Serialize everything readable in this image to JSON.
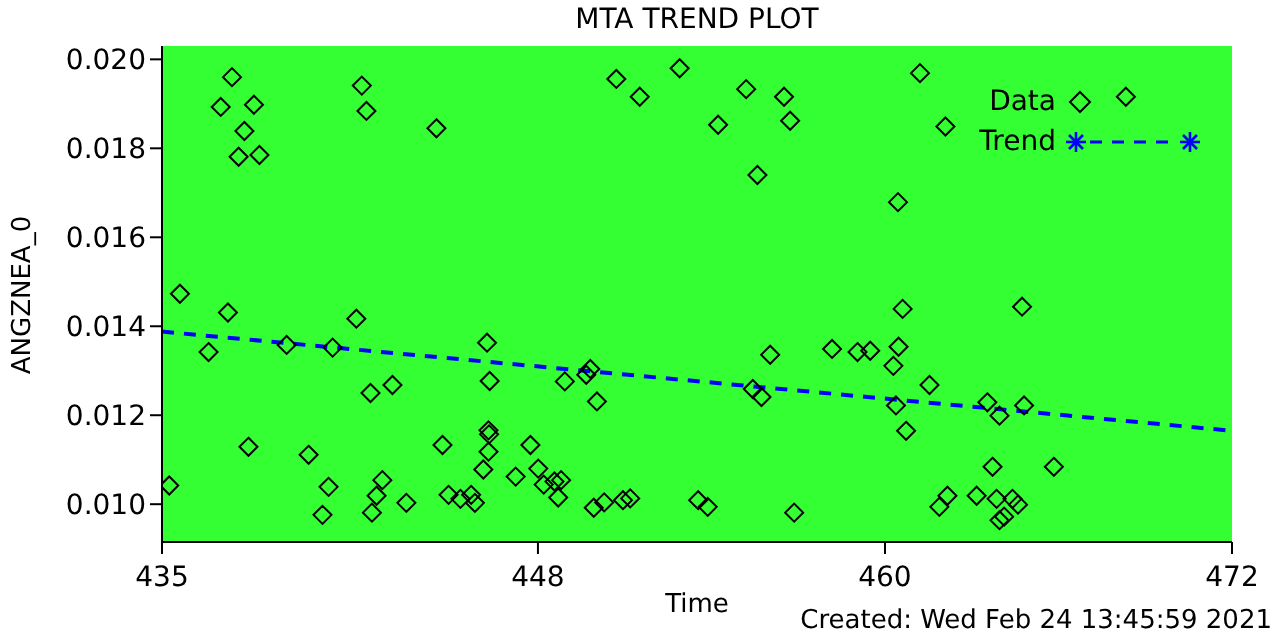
{
  "chart_data": {
    "type": "scatter",
    "title": "MTA TREND PLOT",
    "xlabel": "Time",
    "ylabel": "ANGZNEA_0",
    "annotations": [
      "Created: Wed Feb 24 13:45:59 2021"
    ],
    "xlim": [
      435,
      472
    ],
    "xticks": [
      435,
      448,
      460,
      472
    ],
    "ylim": [
      0.00915,
      0.0203
    ],
    "yticks": [
      {
        "value": 0.01,
        "label": "0.010"
      },
      0.012,
      0.014,
      0.016,
      0.018,
      {
        "value": 0.02,
        "label": "0.020"
      }
    ],
    "grid": false,
    "legend": "top right",
    "marker": "diamond",
    "series": [
      {
        "name": "Data",
        "color": "#000000",
        "x": [
          437.42,
          437.03,
          438.18,
          437.85,
          437.65,
          438.37,
          441.91,
          442.07,
          444.49,
          450.71,
          451.52,
          435.62,
          452.9,
          455.2,
          456.51,
          454.23,
          456.72,
          455.59,
          461.21,
          462.09,
          460.45,
          468.33,
          435.25,
          437.28,
          436.61,
          439.31,
          440.9,
          441.72,
          442.21,
          442.97,
          437.99,
          440.07,
          440.76,
          440.55,
          442.26,
          442.42,
          442.62,
          443.45,
          444.7,
          444.91,
          445.32,
          445.69,
          445.82,
          446.24,
          446.33,
          446.29,
          446.31,
          446.29,
          446.11,
          447.23,
          447.74,
          448.01,
          448.2,
          448.57,
          448.8,
          448.7,
          448.93,
          449.67,
          449.81,
          450.04,
          449.93,
          450.29,
          450.94,
          451.19,
          453.54,
          453.87,
          456.03,
          455.43,
          455.73,
          456.86,
          458.17,
          459.05,
          459.49,
          460.47,
          460.29,
          460.61,
          460.38,
          460.73,
          461.54,
          461.88,
          462.16,
          463.17,
          463.54,
          463.96,
          463.72,
          463.86,
          464.41,
          464.6,
          463.96,
          464.12,
          464.81,
          464.74,
          465.84
        ],
        "values": [
          0.0196,
          0.01893,
          0.01898,
          0.01839,
          0.01781,
          0.01785,
          0.01941,
          0.01884,
          0.01845,
          0.01956,
          0.01916,
          0.01473,
          0.0198,
          0.01933,
          0.01916,
          0.01853,
          0.01862,
          0.0174,
          0.01969,
          0.01849,
          0.01679,
          0.01916,
          0.01042,
          0.01431,
          0.01342,
          0.01358,
          0.01352,
          0.01417,
          0.0125,
          0.01268,
          0.01129,
          0.01111,
          0.01039,
          0.00976,
          0.00981,
          0.01019,
          0.01054,
          0.01003,
          0.01133,
          0.01021,
          0.01012,
          0.01021,
          0.01003,
          0.01363,
          0.01277,
          0.01166,
          0.01157,
          0.01118,
          0.01078,
          0.01062,
          0.01133,
          0.0108,
          0.01044,
          0.01051,
          0.01054,
          0.01015,
          0.01276,
          0.01291,
          0.01304,
          0.01231,
          0.00992,
          0.01004,
          0.01009,
          0.01013,
          0.01009,
          0.00994,
          0.01336,
          0.01259,
          0.01241,
          0.00981,
          0.01349,
          0.01342,
          0.01345,
          0.01354,
          0.01311,
          0.01439,
          0.01222,
          0.01165,
          0.01268,
          0.00994,
          0.01019,
          0.01019,
          0.01229,
          0.01199,
          0.01084,
          0.01012,
          0.01012,
          0.00999,
          0.00964,
          0.00972,
          0.01222,
          0.01444,
          0.01084
        ]
      },
      {
        "name": "Trend",
        "type": "line",
        "color": "#0000ff",
        "line_style": "dashed",
        "marker": "none",
        "x": [
          435,
          472
        ],
        "values": [
          0.01388,
          0.01165
        ]
      }
    ]
  }
}
